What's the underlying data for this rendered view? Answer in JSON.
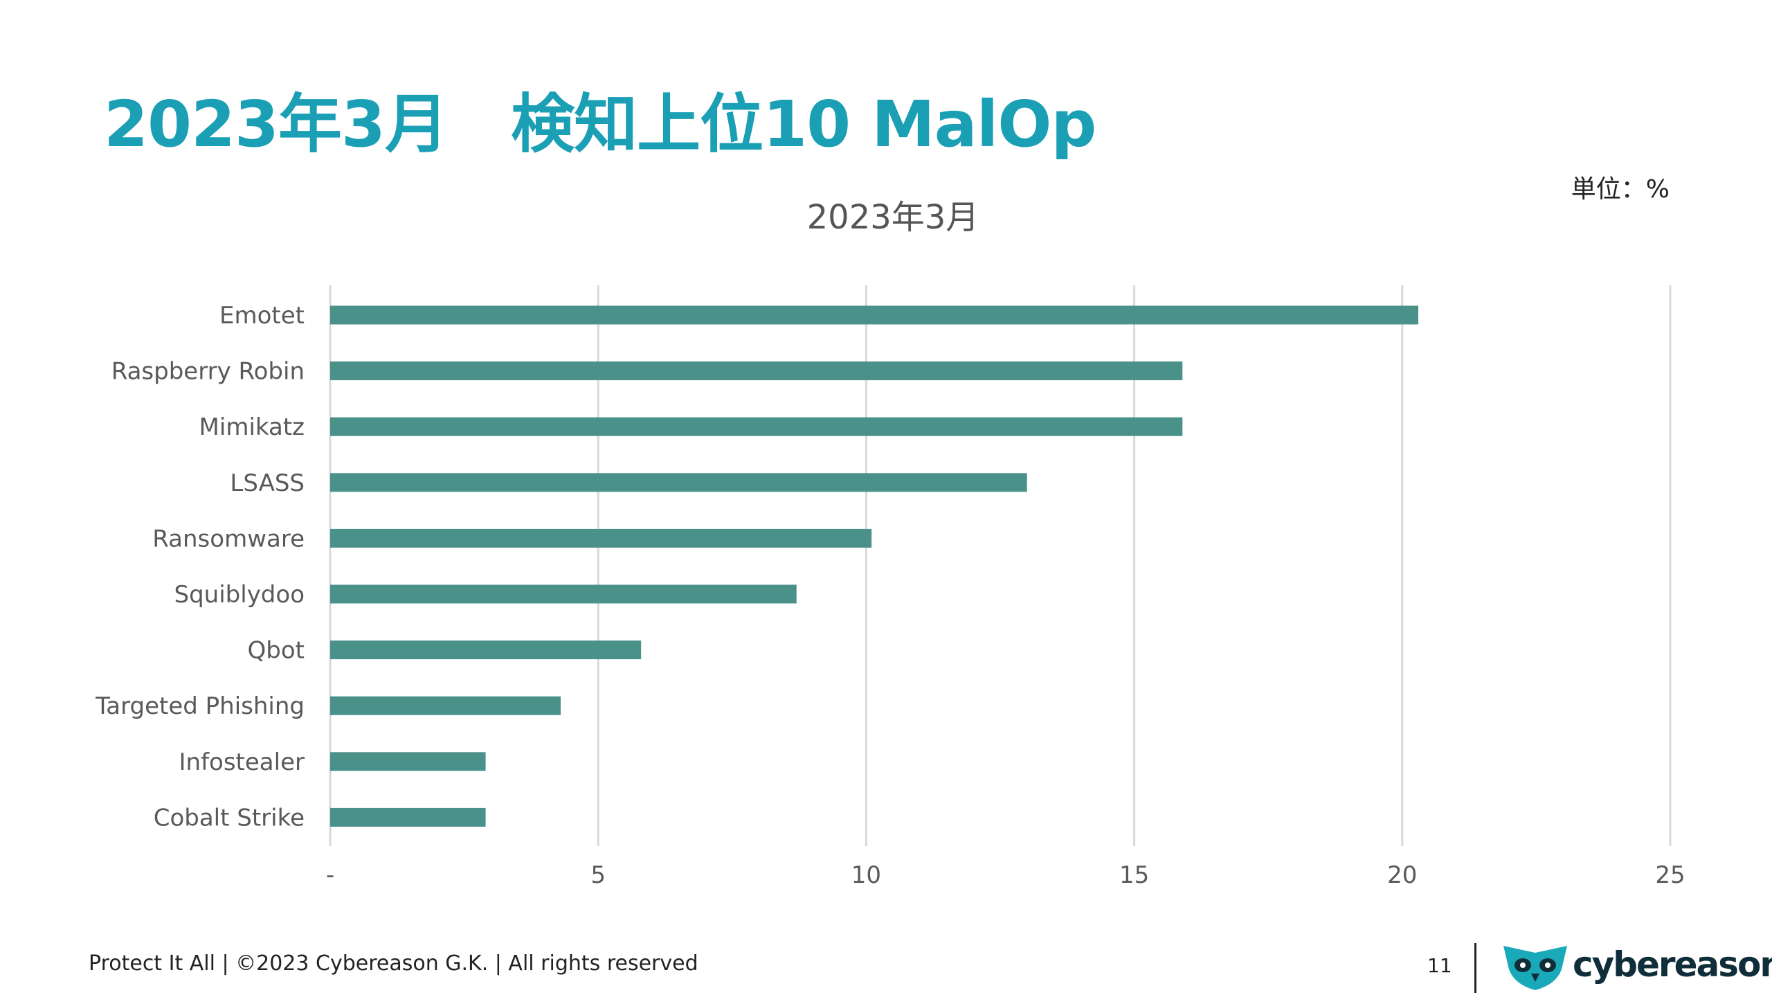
{
  "slide": {
    "title": "2023年3月　検知上位10 MalOp",
    "unit_label": "単位：%",
    "footer_text": "Protect It All | ©2023 Cybereason G.K. | All rights reserved",
    "page_number": "11",
    "brand_name": "cybereason",
    "accent_color": "#1a9fb5"
  },
  "chart_data": {
    "type": "bar",
    "orientation": "horizontal",
    "title": "2023年3月",
    "categories": [
      "Emotet",
      "Raspberry Robin",
      "Mimikatz",
      "LSASS",
      "Ransomware",
      "Squiblydoo",
      "Qbot",
      "Targeted Phishing",
      "Infostealer",
      "Cobalt Strike"
    ],
    "values": [
      20.3,
      15.9,
      15.9,
      13.0,
      10.1,
      8.7,
      5.8,
      4.3,
      2.9,
      2.9
    ],
    "xlim": [
      0,
      25
    ],
    "x_ticks": [
      0,
      5,
      10,
      15,
      20,
      25
    ],
    "x_tick_labels": [
      "-",
      "5",
      "10",
      "15",
      "20",
      "25"
    ],
    "grid": "vertical",
    "legend": "none",
    "bar_color": "#4a9189"
  }
}
